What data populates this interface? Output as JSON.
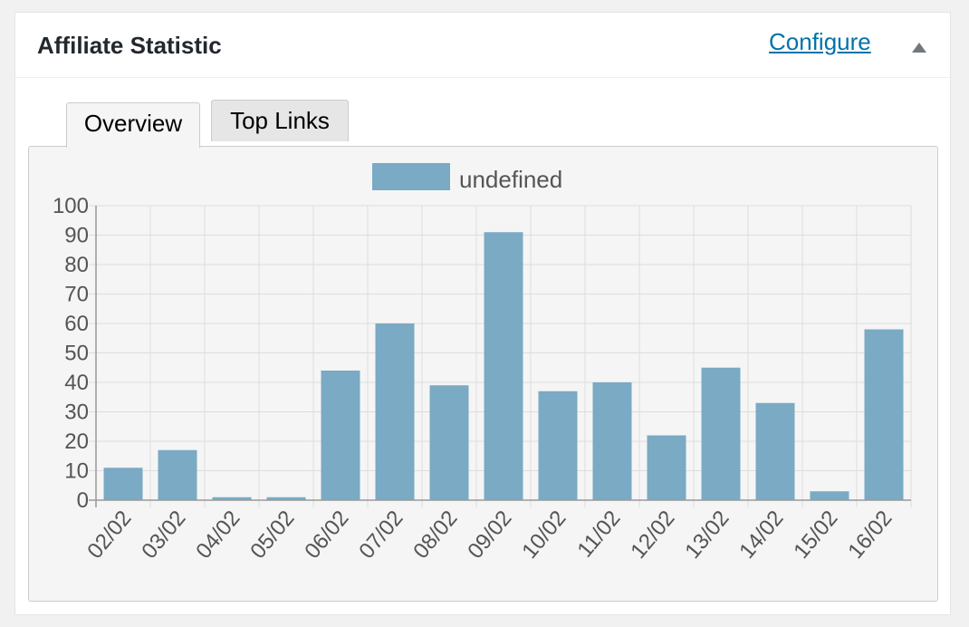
{
  "widget": {
    "title": "Affiliate Statistic",
    "configure_label": "Configure",
    "toggle_icon": "triangle-up-icon"
  },
  "tabs": [
    {
      "label": "Overview",
      "active": true
    },
    {
      "label": "Top Links",
      "active": false
    }
  ],
  "chart_data": {
    "type": "bar",
    "legend": {
      "label": "undefined",
      "position": "top-center"
    },
    "categories": [
      "02/02",
      "03/02",
      "04/02",
      "05/02",
      "06/02",
      "07/02",
      "08/02",
      "09/02",
      "10/02",
      "11/02",
      "12/02",
      "13/02",
      "14/02",
      "15/02",
      "16/02"
    ],
    "series": [
      {
        "name": "undefined",
        "color": "#7aaac4",
        "values": [
          11,
          17,
          1,
          1,
          44,
          60,
          39,
          91,
          37,
          40,
          22,
          45,
          33,
          3,
          58
        ]
      }
    ],
    "ylim": [
      0,
      100
    ],
    "yticks": [
      0,
      10,
      20,
      30,
      40,
      50,
      60,
      70,
      80,
      90,
      100
    ],
    "grid": true,
    "x_tick_rotation": -50
  },
  "colors": {
    "bar": "#7aaac4",
    "grid": "#dddddd",
    "axis": "#999999",
    "link": "#0073aa"
  }
}
